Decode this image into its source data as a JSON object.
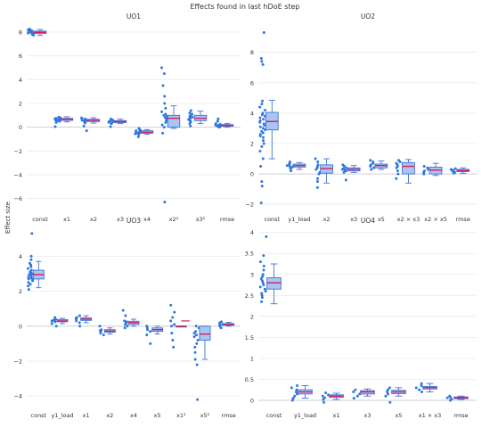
{
  "title": "Effects found in last hDoE step",
  "ylabel": "Effect size",
  "colors": {
    "box_fill": "#a9c6f3",
    "box_line": "#3b74d8",
    "points": "#2e78e0",
    "median": "#e0195c",
    "grid": "#ececec",
    "zeroline": "#cfcfcf",
    "text": "#333333"
  },
  "chart_data": [
    {
      "type": "box",
      "title": "UO1",
      "ylim": [
        -7,
        8.6
      ],
      "yticks": [
        -6,
        -4,
        -2,
        0,
        2,
        4,
        6,
        8
      ],
      "categories": [
        "const",
        "x1",
        "x2",
        "x3",
        "x4",
        "x2²",
        "x3²",
        "rmse"
      ],
      "boxes": [
        {
          "q1": 7.88,
          "median": 7.98,
          "q3": 8.08,
          "lower": 7.72,
          "upper": 8.22,
          "points": [
            7.75,
            7.8,
            7.82,
            7.85,
            7.88,
            7.9,
            7.92,
            7.95,
            7.98,
            8.0,
            8.02,
            8.05,
            8.08,
            8.1,
            8.12,
            8.15,
            8.2,
            8.25
          ]
        },
        {
          "q1": 0.58,
          "median": 0.65,
          "q3": 0.75,
          "lower": 0.45,
          "upper": 0.88,
          "points": [
            0.05,
            0.4,
            0.5,
            0.55,
            0.6,
            0.62,
            0.65,
            0.68,
            0.7,
            0.72,
            0.75,
            0.8,
            0.85
          ]
        },
        {
          "q1": 0.48,
          "median": 0.58,
          "q3": 0.66,
          "lower": 0.35,
          "upper": 0.8,
          "points": [
            -0.3,
            0.1,
            0.35,
            0.45,
            0.5,
            0.55,
            0.58,
            0.6,
            0.65,
            0.7,
            0.78
          ]
        },
        {
          "q1": 0.38,
          "median": 0.48,
          "q3": 0.55,
          "lower": 0.3,
          "upper": 0.68,
          "points": [
            0.05,
            0.3,
            0.35,
            0.42,
            0.48,
            0.5,
            0.52,
            0.55,
            0.62,
            0.7
          ]
        },
        {
          "q1": -0.5,
          "median": -0.42,
          "q3": -0.3,
          "lower": -0.6,
          "upper": -0.2,
          "points": [
            -0.8,
            -0.6,
            -0.55,
            -0.5,
            -0.45,
            -0.4,
            -0.35,
            -0.3,
            -0.25,
            -0.2,
            -0.1
          ]
        },
        {
          "q1": 0.0,
          "median": 0.75,
          "q3": 1.0,
          "lower": -0.1,
          "upper": 1.8,
          "points": [
            -6.3,
            -0.5,
            0.0,
            0.2,
            0.4,
            0.5,
            0.7,
            0.8,
            0.9,
            1.0,
            1.1,
            1.3,
            1.6,
            2.0,
            2.6,
            3.5,
            4.5,
            5.0
          ]
        },
        {
          "q1": 0.55,
          "median": 0.75,
          "q3": 1.0,
          "lower": 0.3,
          "upper": 1.35,
          "points": [
            0.1,
            0.3,
            0.45,
            0.55,
            0.65,
            0.75,
            0.85,
            0.9,
            1.0,
            1.1,
            1.2,
            1.4
          ]
        },
        {
          "q1": 0.08,
          "median": 0.15,
          "q3": 0.22,
          "lower": 0.0,
          "upper": 0.32,
          "points": [
            0.0,
            0.05,
            0.1,
            0.12,
            0.15,
            0.18,
            0.2,
            0.25,
            0.3,
            0.5,
            0.7
          ]
        }
      ]
    },
    {
      "type": "box",
      "title": "UO2",
      "ylim": [
        -2.4,
        9.8
      ],
      "yticks": [
        -2,
        0,
        2,
        4,
        6,
        8
      ],
      "categories": [
        "const",
        "y1_load",
        "x2",
        "x3",
        "x5",
        "x2 × x3",
        "x2 × x5",
        "rmse"
      ],
      "boxes": [
        {
          "q1": 2.9,
          "median": 3.45,
          "q3": 4.05,
          "lower": 1.0,
          "upper": 4.85,
          "points": [
            -1.9,
            -0.8,
            -0.5,
            0.5,
            1.0,
            1.5,
            1.8,
            2.0,
            2.2,
            2.4,
            2.5,
            2.6,
            2.7,
            2.8,
            2.9,
            3.0,
            3.1,
            3.2,
            3.3,
            3.4,
            3.5,
            3.6,
            3.7,
            3.8,
            3.9,
            4.0,
            4.2,
            4.4,
            4.6,
            4.8,
            7.2,
            7.4,
            7.6,
            9.3
          ]
        },
        {
          "q1": 0.45,
          "median": 0.55,
          "q3": 0.65,
          "lower": 0.3,
          "upper": 0.75,
          "points": [
            0.2,
            0.35,
            0.45,
            0.5,
            0.55,
            0.6,
            0.65,
            0.7,
            0.8
          ]
        },
        {
          "q1": 0.05,
          "median": 0.35,
          "q3": 0.6,
          "lower": -0.6,
          "upper": 1.0,
          "points": [
            -0.9,
            -0.5,
            -0.3,
            0.0,
            0.1,
            0.3,
            0.4,
            0.5,
            0.6,
            0.8,
            1.0
          ]
        },
        {
          "q1": 0.2,
          "median": 0.3,
          "q3": 0.4,
          "lower": 0.1,
          "upper": 0.55,
          "points": [
            -0.4,
            0.1,
            0.2,
            0.25,
            0.3,
            0.35,
            0.4,
            0.5,
            0.6
          ]
        },
        {
          "q1": 0.4,
          "median": 0.55,
          "q3": 0.65,
          "lower": 0.3,
          "upper": 0.85,
          "points": [
            0.3,
            0.4,
            0.5,
            0.55,
            0.6,
            0.7,
            0.8,
            0.9
          ]
        },
        {
          "q1": 0.0,
          "median": 0.5,
          "q3": 0.75,
          "lower": -0.6,
          "upper": 0.95,
          "points": [
            -0.3,
            0.0,
            0.2,
            0.4,
            0.5,
            0.6,
            0.7,
            0.8,
            0.9
          ]
        },
        {
          "q1": 0.0,
          "median": 0.25,
          "q3": 0.45,
          "lower": -0.1,
          "upper": 0.7,
          "points": [
            0.0,
            0.1,
            0.2,
            0.3,
            0.4,
            0.5
          ]
        },
        {
          "q1": 0.15,
          "median": 0.22,
          "q3": 0.3,
          "lower": 0.05,
          "upper": 0.4,
          "points": [
            0.05,
            0.1,
            0.15,
            0.2,
            0.25,
            0.3,
            0.35
          ]
        }
      ]
    },
    {
      "type": "box",
      "title": "UO3",
      "ylim": [
        -4.6,
        5.6
      ],
      "yticks": [
        -4,
        -2,
        0,
        2,
        4
      ],
      "categories": [
        "const",
        "y1_load",
        "x1",
        "x2",
        "x4",
        "x5",
        "x1²",
        "x5²",
        "rmse"
      ],
      "boxes": [
        {
          "q1": 2.7,
          "median": 2.95,
          "q3": 3.2,
          "lower": 2.2,
          "upper": 3.7,
          "points": [
            2.1,
            2.3,
            2.4,
            2.5,
            2.6,
            2.65,
            2.7,
            2.75,
            2.8,
            2.85,
            2.9,
            2.95,
            3.0,
            3.05,
            3.1,
            3.2,
            3.3,
            3.4,
            3.5,
            3.6,
            3.8,
            4.0,
            5.3
          ]
        },
        {
          "q1": 0.25,
          "median": 0.3,
          "q3": 0.38,
          "lower": 0.15,
          "upper": 0.45,
          "points": [
            0.0,
            0.15,
            0.25,
            0.3,
            0.35,
            0.4,
            0.5
          ]
        },
        {
          "q1": 0.33,
          "median": 0.4,
          "q3": 0.48,
          "lower": 0.2,
          "upper": 0.6,
          "points": [
            0.0,
            0.2,
            0.3,
            0.4,
            0.45,
            0.5,
            0.6
          ]
        },
        {
          "q1": -0.35,
          "median": -0.28,
          "q3": -0.2,
          "lower": -0.45,
          "upper": -0.1,
          "points": [
            -0.5,
            -0.4,
            -0.3,
            -0.25,
            -0.2,
            0.0
          ]
        },
        {
          "q1": 0.1,
          "median": 0.2,
          "q3": 0.28,
          "lower": 0.0,
          "upper": 0.4,
          "points": [
            -0.1,
            0.0,
            0.1,
            0.2,
            0.25,
            0.3,
            0.6,
            0.9
          ]
        },
        {
          "q1": -0.3,
          "median": -0.2,
          "q3": -0.1,
          "lower": -0.45,
          "upper": 0.0,
          "points": [
            -1.0,
            -0.5,
            -0.3,
            -0.2,
            -0.1,
            0.0
          ]
        },
        {
          "q1": 0.0,
          "median": 0.0,
          "q3": 0.0,
          "lower": 0.0,
          "upper": 0.0,
          "points": [
            -1.2,
            -0.8,
            -0.4,
            0.0,
            0.1,
            0.3,
            0.5,
            0.8,
            1.2
          ],
          "extra_median": 0.3
        },
        {
          "q1": -0.8,
          "median": -0.45,
          "q3": 0.0,
          "lower": -1.9,
          "upper": 0.0,
          "points": [
            -4.2,
            -2.2,
            -1.9,
            -1.5,
            -1.2,
            -1.0,
            -0.8,
            -0.6,
            -0.5,
            -0.4,
            -0.3,
            -0.1,
            0.0
          ]
        },
        {
          "q1": 0.05,
          "median": 0.1,
          "q3": 0.15,
          "lower": 0.0,
          "upper": 0.22,
          "points": [
            -0.1,
            0.0,
            0.05,
            0.1,
            0.15,
            0.2,
            0.25
          ]
        }
      ]
    },
    {
      "type": "box",
      "title": "UO4",
      "ylim": [
        -0.15,
        4.1
      ],
      "yticks": [
        0,
        0.5,
        1,
        1.5,
        2,
        2.5,
        3,
        3.5,
        4
      ],
      "categories": [
        "const",
        "y1_load",
        "x1",
        "x3",
        "x5",
        "x1 × x3",
        "rmse"
      ],
      "boxes": [
        {
          "q1": 2.65,
          "median": 2.8,
          "q3": 2.92,
          "lower": 2.3,
          "upper": 3.25,
          "points": [
            2.35,
            2.45,
            2.5,
            2.55,
            2.6,
            2.65,
            2.7,
            2.75,
            2.8,
            2.85,
            2.9,
            2.95,
            3.0,
            3.1,
            3.2,
            3.3,
            3.45,
            3.9
          ]
        },
        {
          "q1": 0.15,
          "median": 0.2,
          "q3": 0.25,
          "lower": 0.05,
          "upper": 0.35,
          "points": [
            0.0,
            0.05,
            0.1,
            0.15,
            0.2,
            0.25,
            0.3,
            0.35
          ]
        },
        {
          "q1": 0.07,
          "median": 0.1,
          "q3": 0.13,
          "lower": 0.02,
          "upper": 0.17,
          "points": [
            -0.05,
            0.02,
            0.06,
            0.1,
            0.13,
            0.18
          ]
        },
        {
          "q1": 0.15,
          "median": 0.2,
          "q3": 0.23,
          "lower": 0.1,
          "upper": 0.27,
          "points": [
            0.05,
            0.1,
            0.15,
            0.2,
            0.25
          ]
        },
        {
          "q1": 0.16,
          "median": 0.2,
          "q3": 0.24,
          "lower": 0.1,
          "upper": 0.3,
          "points": [
            -0.05,
            0.1,
            0.15,
            0.2,
            0.25,
            0.3
          ]
        },
        {
          "q1": 0.27,
          "median": 0.3,
          "q3": 0.33,
          "lower": 0.2,
          "upper": 0.4,
          "points": [
            0.2,
            0.25,
            0.3,
            0.35,
            0.4
          ]
        },
        {
          "q1": 0.04,
          "median": 0.06,
          "q3": 0.08,
          "lower": 0.02,
          "upper": 0.1,
          "points": [
            0.0,
            0.03,
            0.06,
            0.08,
            0.1
          ]
        }
      ]
    }
  ]
}
